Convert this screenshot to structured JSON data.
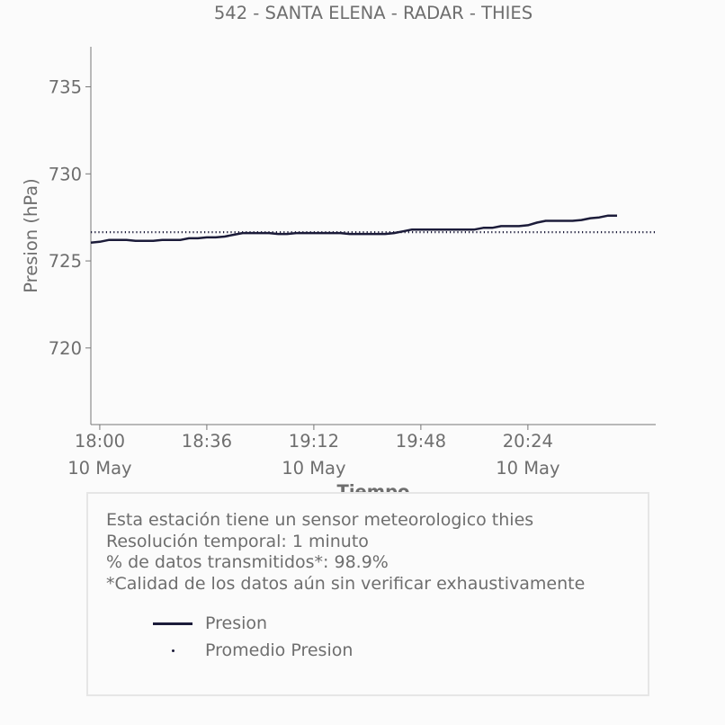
{
  "chart_data": {
    "type": "line",
    "title": "542 - SANTA ELENA - RADAR - THIES",
    "xlabel": "Tiempo",
    "ylabel": "Presion (hPa)",
    "ylim": [
      715.6,
      737.3
    ],
    "xlim": [
      "17:57",
      "21:07"
    ],
    "y_ticks": [
      720,
      725,
      730,
      735
    ],
    "x_ticks": [
      {
        "time": "18:00",
        "label": "18:00",
        "date": "10 May"
      },
      {
        "time": "18:36",
        "label": "18:36",
        "date": ""
      },
      {
        "time": "19:12",
        "label": "19:12",
        "date": "10 May"
      },
      {
        "time": "19:48",
        "label": "19:48",
        "date": ""
      },
      {
        "time": "20:24",
        "label": "20:24",
        "date": "10 May"
      }
    ],
    "grid": false,
    "series": [
      {
        "name": "Presion",
        "color": "#1c1c3a",
        "style": "solid",
        "x": [
          "17:57",
          "18:00",
          "18:03",
          "18:06",
          "18:09",
          "18:12",
          "18:15",
          "18:18",
          "18:21",
          "18:24",
          "18:27",
          "18:30",
          "18:33",
          "18:36",
          "18:39",
          "18:42",
          "18:45",
          "18:48",
          "18:51",
          "18:54",
          "18:57",
          "19:00",
          "19:03",
          "19:06",
          "19:09",
          "19:12",
          "19:15",
          "19:18",
          "19:21",
          "19:24",
          "19:27",
          "19:30",
          "19:33",
          "19:36",
          "19:39",
          "19:42",
          "19:45",
          "19:48",
          "19:51",
          "19:54",
          "19:57",
          "20:00",
          "20:03",
          "20:06",
          "20:09",
          "20:12",
          "20:15",
          "20:18",
          "20:21",
          "20:24",
          "20:27",
          "20:30",
          "20:33",
          "20:36",
          "20:39",
          "20:42",
          "20:45",
          "20:48",
          "20:51",
          "20:54"
        ],
        "values": [
          726.05,
          726.1,
          726.2,
          726.2,
          726.2,
          726.15,
          726.15,
          726.15,
          726.2,
          726.2,
          726.2,
          726.3,
          726.3,
          726.35,
          726.35,
          726.4,
          726.5,
          726.6,
          726.6,
          726.6,
          726.6,
          726.55,
          726.55,
          726.6,
          726.6,
          726.6,
          726.6,
          726.6,
          726.6,
          726.55,
          726.55,
          726.55,
          726.55,
          726.55,
          726.6,
          726.7,
          726.8,
          726.8,
          726.8,
          726.8,
          726.8,
          726.8,
          726.8,
          726.8,
          726.9,
          726.9,
          727.0,
          727.0,
          727.0,
          727.05,
          727.2,
          727.3,
          727.3,
          727.3,
          727.3,
          727.35,
          727.45,
          727.5,
          727.6,
          727.6
        ]
      },
      {
        "name": "Promedio Presion",
        "color": "#1c1c3a",
        "style": "dotted",
        "x": [
          "17:57",
          "21:07"
        ],
        "values": [
          726.65,
          726.65
        ]
      }
    ]
  },
  "info": {
    "line1": "Esta estación tiene un sensor meteorologico thies",
    "line2": "Resolución temporal: 1 minuto",
    "line3": "% de datos transmitidos*: 98.9%",
    "line4": "*Calidad de los datos aún sin verificar exhaustivamente"
  },
  "legend": [
    {
      "label": "Presion",
      "marker": "line"
    },
    {
      "label": "Promedio Presion",
      "marker": "dot"
    }
  ]
}
